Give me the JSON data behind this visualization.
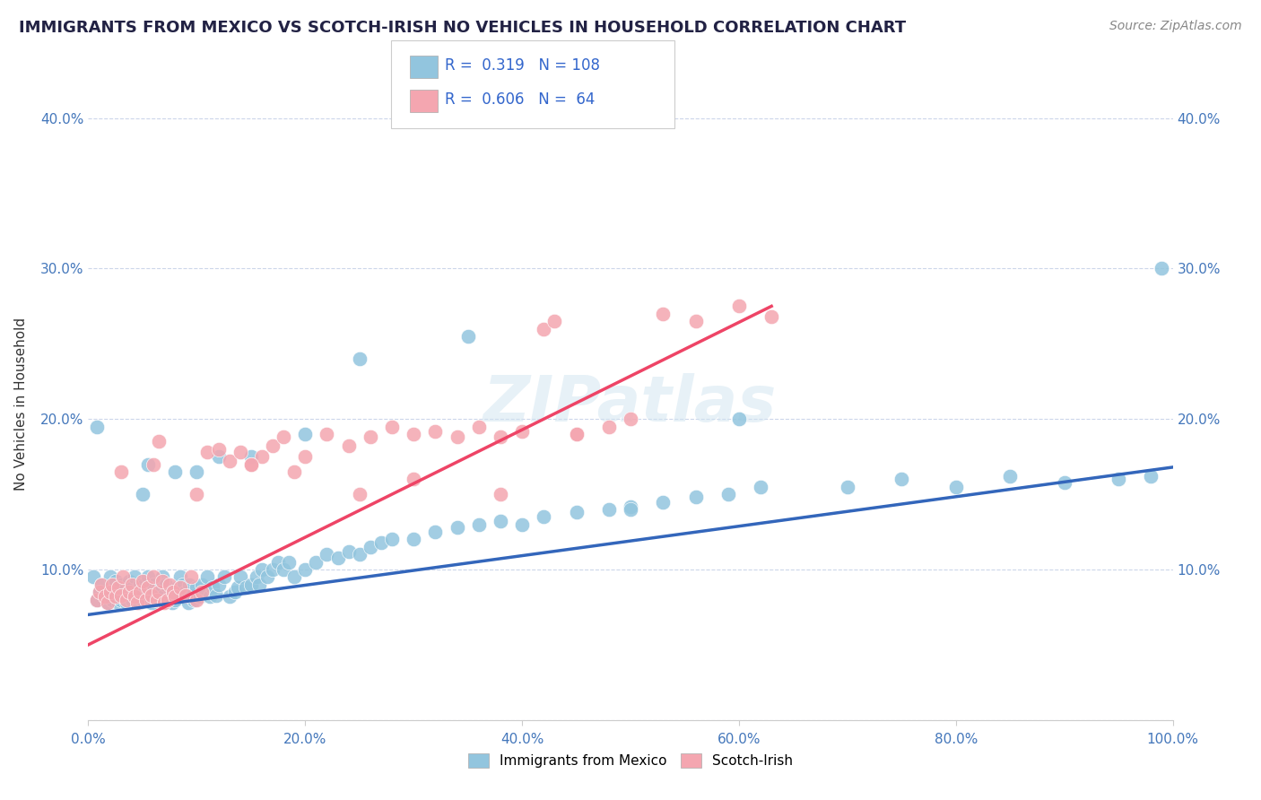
{
  "title": "IMMIGRANTS FROM MEXICO VS SCOTCH-IRISH NO VEHICLES IN HOUSEHOLD CORRELATION CHART",
  "source": "Source: ZipAtlas.com",
  "ylabel": "No Vehicles in Household",
  "xlim": [
    0,
    1.0
  ],
  "ylim": [
    0,
    0.42
  ],
  "xticks": [
    0.0,
    0.2,
    0.4,
    0.6,
    0.8,
    1.0
  ],
  "xticklabels": [
    "0.0%",
    "20.0%",
    "40.0%",
    "60.0%",
    "80.0%",
    "100.0%"
  ],
  "yticks": [
    0.0,
    0.1,
    0.2,
    0.3,
    0.4
  ],
  "yticklabels": [
    "",
    "10.0%",
    "20.0%",
    "30.0%",
    "40.0%"
  ],
  "watermark": "ZIPatlas",
  "legend_blue_r": "0.319",
  "legend_blue_n": "108",
  "legend_pink_r": "0.606",
  "legend_pink_n": "64",
  "blue_color": "#92c5de",
  "pink_color": "#f4a6b0",
  "blue_line_color": "#3366bb",
  "pink_line_color": "#ee4466",
  "blue_dash_color": "#aaaaaa",
  "blue_trendline": [
    0.0,
    0.07,
    1.0,
    0.168
  ],
  "pink_trendline": [
    0.0,
    0.05,
    0.63,
    0.275
  ],
  "blue_scatter_x": [
    0.005,
    0.008,
    0.01,
    0.012,
    0.015,
    0.018,
    0.02,
    0.02,
    0.022,
    0.025,
    0.025,
    0.028,
    0.03,
    0.03,
    0.032,
    0.033,
    0.035,
    0.037,
    0.038,
    0.04,
    0.04,
    0.042,
    0.043,
    0.045,
    0.045,
    0.047,
    0.048,
    0.05,
    0.05,
    0.052,
    0.053,
    0.055,
    0.055,
    0.057,
    0.058,
    0.06,
    0.06,
    0.062,
    0.063,
    0.065,
    0.065,
    0.067,
    0.068,
    0.07,
    0.07,
    0.072,
    0.075,
    0.077,
    0.078,
    0.08,
    0.082,
    0.083,
    0.085,
    0.087,
    0.088,
    0.09,
    0.092,
    0.093,
    0.095,
    0.097,
    0.1,
    0.103,
    0.105,
    0.108,
    0.11,
    0.112,
    0.115,
    0.118,
    0.12,
    0.125,
    0.13,
    0.135,
    0.138,
    0.14,
    0.145,
    0.15,
    0.155,
    0.158,
    0.16,
    0.165,
    0.17,
    0.175,
    0.18,
    0.185,
    0.19,
    0.2,
    0.21,
    0.22,
    0.23,
    0.24,
    0.25,
    0.26,
    0.27,
    0.28,
    0.3,
    0.32,
    0.34,
    0.36,
    0.38,
    0.4,
    0.42,
    0.45,
    0.48,
    0.5,
    0.53,
    0.56,
    0.59,
    0.62
  ],
  "blue_scatter_y": [
    0.095,
    0.08,
    0.085,
    0.09,
    0.082,
    0.078,
    0.083,
    0.095,
    0.08,
    0.085,
    0.092,
    0.078,
    0.08,
    0.09,
    0.085,
    0.082,
    0.078,
    0.085,
    0.092,
    0.08,
    0.088,
    0.083,
    0.095,
    0.08,
    0.085,
    0.078,
    0.09,
    0.08,
    0.085,
    0.09,
    0.082,
    0.088,
    0.095,
    0.083,
    0.078,
    0.08,
    0.09,
    0.085,
    0.082,
    0.08,
    0.088,
    0.085,
    0.095,
    0.08,
    0.083,
    0.09,
    0.082,
    0.078,
    0.085,
    0.08,
    0.088,
    0.083,
    0.095,
    0.09,
    0.082,
    0.085,
    0.078,
    0.09,
    0.083,
    0.08,
    0.088,
    0.082,
    0.09,
    0.085,
    0.095,
    0.082,
    0.088,
    0.083,
    0.09,
    0.095,
    0.082,
    0.085,
    0.088,
    0.095,
    0.088,
    0.09,
    0.095,
    0.09,
    0.1,
    0.095,
    0.1,
    0.105,
    0.1,
    0.105,
    0.095,
    0.1,
    0.105,
    0.11,
    0.108,
    0.112,
    0.11,
    0.115,
    0.118,
    0.12,
    0.12,
    0.125,
    0.128,
    0.13,
    0.132,
    0.13,
    0.135,
    0.138,
    0.14,
    0.142,
    0.145,
    0.148,
    0.15,
    0.155
  ],
  "blue_outliers_x": [
    0.008,
    0.05,
    0.055,
    0.08,
    0.1,
    0.12,
    0.15,
    0.2,
    0.25,
    0.35,
    0.5,
    0.6,
    0.7,
    0.75,
    0.8,
    0.85,
    0.9,
    0.95,
    0.98,
    0.99
  ],
  "blue_outliers_y": [
    0.195,
    0.15,
    0.17,
    0.165,
    0.165,
    0.175,
    0.175,
    0.19,
    0.24,
    0.255,
    0.14,
    0.2,
    0.155,
    0.16,
    0.155,
    0.162,
    0.158,
    0.16,
    0.162,
    0.3
  ],
  "pink_scatter_x": [
    0.008,
    0.01,
    0.012,
    0.015,
    0.018,
    0.02,
    0.022,
    0.025,
    0.028,
    0.03,
    0.032,
    0.035,
    0.038,
    0.04,
    0.043,
    0.045,
    0.048,
    0.05,
    0.053,
    0.055,
    0.058,
    0.06,
    0.063,
    0.065,
    0.068,
    0.07,
    0.073,
    0.075,
    0.078,
    0.08,
    0.085,
    0.09,
    0.095,
    0.1,
    0.105,
    0.11,
    0.12,
    0.13,
    0.14,
    0.15,
    0.16,
    0.17,
    0.18,
    0.2,
    0.22,
    0.24,
    0.26,
    0.28,
    0.3,
    0.32,
    0.34,
    0.36,
    0.38,
    0.4,
    0.42,
    0.45,
    0.48,
    0.5,
    0.53,
    0.56,
    0.6,
    0.63
  ],
  "pink_scatter_y": [
    0.08,
    0.085,
    0.09,
    0.082,
    0.078,
    0.085,
    0.09,
    0.082,
    0.088,
    0.083,
    0.095,
    0.08,
    0.085,
    0.09,
    0.082,
    0.078,
    0.085,
    0.092,
    0.08,
    0.088,
    0.083,
    0.095,
    0.08,
    0.085,
    0.092,
    0.078,
    0.08,
    0.09,
    0.085,
    0.082,
    0.088,
    0.083,
    0.095,
    0.08,
    0.085,
    0.178,
    0.18,
    0.172,
    0.178,
    0.17,
    0.175,
    0.182,
    0.188,
    0.175,
    0.19,
    0.182,
    0.188,
    0.195,
    0.19,
    0.192,
    0.188,
    0.195,
    0.188,
    0.192,
    0.26,
    0.19,
    0.195,
    0.2,
    0.27,
    0.265,
    0.275,
    0.268
  ],
  "pink_outliers_x": [
    0.03,
    0.06,
    0.065,
    0.1,
    0.15,
    0.19,
    0.25,
    0.3,
    0.38,
    0.43,
    0.45
  ],
  "pink_outliers_y": [
    0.165,
    0.17,
    0.185,
    0.15,
    0.17,
    0.165,
    0.15,
    0.16,
    0.15,
    0.265,
    0.19
  ]
}
